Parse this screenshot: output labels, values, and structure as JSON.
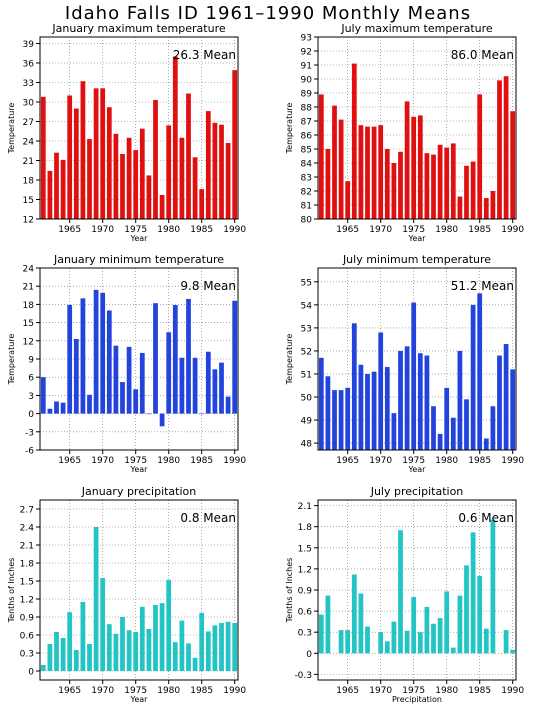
{
  "page_title": "Idaho Falls ID  1961–1990 Monthly Means",
  "chart_data": [
    {
      "type": "bar",
      "title": "January maximum temperature",
      "xlabel": "Year",
      "ylabel": "Temperature",
      "mean_label": "26.3 Mean",
      "color": "#e01010",
      "ylim": [
        12,
        40
      ],
      "yticks": [
        12,
        15,
        18,
        21,
        24,
        27,
        30,
        33,
        36,
        39
      ],
      "ytick_labels": [
        "12",
        "15",
        "18",
        "21",
        "24",
        "27",
        "30",
        "33",
        "36",
        "39"
      ],
      "xlim": [
        1960.5,
        1990.5
      ],
      "xticks": [
        1965,
        1970,
        1975,
        1980,
        1985,
        1990
      ],
      "xtick_labels": [
        "1965",
        "1970",
        "1975",
        "1980",
        "1985",
        "1990"
      ],
      "grid": true,
      "x": [
        1961,
        1962,
        1963,
        1964,
        1965,
        1966,
        1967,
        1968,
        1969,
        1970,
        1971,
        1972,
        1973,
        1974,
        1975,
        1976,
        1977,
        1978,
        1979,
        1980,
        1981,
        1982,
        1983,
        1984,
        1985,
        1986,
        1987,
        1988,
        1989,
        1990
      ],
      "values": [
        30.8,
        19.4,
        22.2,
        21.1,
        31.0,
        29.0,
        33.2,
        24.3,
        32.1,
        32.1,
        29.2,
        25.1,
        22.0,
        24.5,
        22.6,
        25.9,
        18.7,
        30.3,
        15.7,
        26.4,
        37.0,
        24.5,
        31.3,
        21.5,
        16.6,
        28.6,
        26.8,
        26.5,
        23.7,
        34.9
      ]
    },
    {
      "type": "bar",
      "title": "July maximum temperature",
      "xlabel": "Year",
      "ylabel": "Temperature",
      "mean_label": "86.0 Mean",
      "color": "#e01010",
      "ylim": [
        80,
        93
      ],
      "yticks": [
        80,
        81,
        82,
        83,
        84,
        85,
        86,
        87,
        88,
        89,
        90,
        91,
        92,
        93
      ],
      "ytick_labels": [
        "80",
        "81",
        "82",
        "83",
        "84",
        "85",
        "86",
        "87",
        "88",
        "89",
        "90",
        "91",
        "92",
        "93"
      ],
      "xlim": [
        1960.5,
        1990.5
      ],
      "xticks": [
        1965,
        1970,
        1975,
        1980,
        1985,
        1990
      ],
      "xtick_labels": [
        "1965",
        "1970",
        "1975",
        "1980",
        "1985",
        "1990"
      ],
      "grid": true,
      "x": [
        1961,
        1962,
        1963,
        1964,
        1965,
        1966,
        1967,
        1968,
        1969,
        1970,
        1971,
        1972,
        1973,
        1974,
        1975,
        1976,
        1977,
        1978,
        1979,
        1980,
        1981,
        1982,
        1983,
        1984,
        1985,
        1986,
        1987,
        1988,
        1989,
        1990
      ],
      "values": [
        88.9,
        85.0,
        88.1,
        87.1,
        82.7,
        91.1,
        86.7,
        86.6,
        86.6,
        86.7,
        85.0,
        84.0,
        84.8,
        88.4,
        87.3,
        87.4,
        84.7,
        84.6,
        85.3,
        85.1,
        85.4,
        81.6,
        83.8,
        84.1,
        88.9,
        81.5,
        82.0,
        89.9,
        90.2,
        87.7
      ]
    },
    {
      "type": "bar",
      "title": "January minimum temperature",
      "xlabel": "Year",
      "ylabel": "Temperature",
      "mean_label": "9.8 Mean",
      "color": "#2244dd",
      "ylim": [
        -6,
        24
      ],
      "yticks": [
        -6,
        -3,
        0,
        3,
        6,
        9,
        12,
        15,
        18,
        21,
        24
      ],
      "ytick_labels": [
        "-6",
        "-3",
        "0",
        "3",
        "6",
        "9",
        "12",
        "15",
        "18",
        "21",
        "24"
      ],
      "xlim": [
        1960.5,
        1990.5
      ],
      "xticks": [
        1965,
        1970,
        1975,
        1980,
        1985,
        1990
      ],
      "xtick_labels": [
        "1965",
        "1970",
        "1975",
        "1980",
        "1985",
        "1990"
      ],
      "grid": true,
      "x": [
        1961,
        1962,
        1963,
        1964,
        1965,
        1966,
        1967,
        1968,
        1969,
        1970,
        1971,
        1972,
        1973,
        1974,
        1975,
        1976,
        1977,
        1978,
        1979,
        1980,
        1981,
        1982,
        1983,
        1984,
        1985,
        1986,
        1987,
        1988,
        1989,
        1990
      ],
      "values": [
        6.0,
        0.8,
        2.0,
        1.8,
        17.9,
        12.3,
        19.0,
        3.1,
        20.4,
        19.9,
        17.0,
        11.2,
        5.2,
        11.0,
        4.0,
        10.0,
        -0.1,
        18.2,
        -2.1,
        13.4,
        17.9,
        9.2,
        18.9,
        9.2,
        -0.1,
        10.2,
        7.3,
        8.4,
        2.8,
        18.6
      ]
    },
    {
      "type": "bar",
      "title": "July minimum temperature",
      "xlabel": "Year",
      "ylabel": "Temperature",
      "mean_label": "51.2 Mean",
      "color": "#2244dd",
      "ylim": [
        47.7,
        55.6
      ],
      "yticks": [
        48,
        49,
        50,
        51,
        52,
        53,
        54,
        55
      ],
      "ytick_labels": [
        "48",
        "49",
        "50",
        "51",
        "52",
        "53",
        "54",
        "55"
      ],
      "xlim": [
        1960.5,
        1990.5
      ],
      "xticks": [
        1965,
        1970,
        1975,
        1980,
        1985,
        1990
      ],
      "xtick_labels": [
        "1965",
        "1970",
        "1975",
        "1980",
        "1985",
        "1990"
      ],
      "grid": true,
      "x": [
        1961,
        1962,
        1963,
        1964,
        1965,
        1966,
        1967,
        1968,
        1969,
        1970,
        1971,
        1972,
        1973,
        1974,
        1975,
        1976,
        1977,
        1978,
        1979,
        1980,
        1981,
        1982,
        1983,
        1984,
        1985,
        1986,
        1987,
        1988,
        1989,
        1990
      ],
      "values": [
        51.7,
        50.9,
        50.3,
        50.3,
        50.4,
        53.2,
        51.4,
        51.0,
        51.1,
        52.8,
        51.3,
        49.3,
        52.0,
        52.2,
        54.1,
        51.9,
        51.8,
        49.6,
        48.4,
        50.4,
        49.1,
        52.0,
        49.9,
        54.0,
        54.5,
        48.2,
        49.6,
        51.8,
        52.3,
        51.2
      ]
    },
    {
      "type": "bar",
      "title": "January precipitation",
      "xlabel": "Year",
      "ylabel": "Tenths of Inches",
      "mean_label": "0.8 Mean",
      "color": "#22c4c4",
      "ylim": [
        -0.15,
        2.85
      ],
      "yticks": [
        0,
        0.3,
        0.6,
        0.9,
        1.2,
        1.5,
        1.8,
        2.1,
        2.4,
        2.7
      ],
      "ytick_labels": [
        "0",
        "0.3",
        "0.6",
        "0.9",
        "1.2",
        "1.5",
        "1.8",
        "2.1",
        "2.4",
        "2.7"
      ],
      "xlim": [
        1960.5,
        1990.5
      ],
      "xticks": [
        1965,
        1970,
        1975,
        1980,
        1985,
        1990
      ],
      "xtick_labels": [
        "1965",
        "1970",
        "1975",
        "1980",
        "1985",
        "1990"
      ],
      "grid": true,
      "x": [
        1961,
        1962,
        1963,
        1964,
        1965,
        1966,
        1967,
        1968,
        1969,
        1970,
        1971,
        1972,
        1973,
        1974,
        1975,
        1976,
        1977,
        1978,
        1979,
        1980,
        1981,
        1982,
        1983,
        1984,
        1985,
        1986,
        1987,
        1988,
        1989,
        1990
      ],
      "values": [
        0.1,
        0.45,
        0.65,
        0.55,
        0.98,
        0.35,
        1.15,
        0.45,
        2.4,
        1.55,
        0.78,
        0.62,
        0.9,
        0.68,
        0.65,
        1.07,
        0.7,
        1.1,
        1.13,
        1.52,
        0.48,
        0.84,
        0.46,
        0.22,
        0.97,
        0.66,
        0.76,
        0.8,
        0.82,
        0.8
      ]
    },
    {
      "type": "bar",
      "title": "July precipitation",
      "xlabel": "Precipitation",
      "ylabel": "Tenths of Inches",
      "mean_label": "0.6 Mean",
      "color": "#22c4c4",
      "ylim": [
        -0.38,
        2.18
      ],
      "yticks": [
        -0.3,
        0,
        0.3,
        0.6,
        0.9,
        1.2,
        1.5,
        1.8,
        2.1
      ],
      "ytick_labels": [
        "-0.3",
        "0",
        "0.3",
        "0.6",
        "0.9",
        "1.2",
        "1.5",
        "1.8",
        "2.1"
      ],
      "xlim": [
        1960.5,
        1990.5
      ],
      "xticks": [
        1965,
        1970,
        1975,
        1980,
        1985,
        1990
      ],
      "xtick_labels": [
        "1965",
        "1970",
        "1975",
        "1980",
        "1985",
        "1990"
      ],
      "grid": true,
      "x": [
        1961,
        1962,
        1963,
        1964,
        1965,
        1966,
        1967,
        1968,
        1969,
        1970,
        1971,
        1972,
        1973,
        1974,
        1975,
        1976,
        1977,
        1978,
        1979,
        1980,
        1981,
        1982,
        1983,
        1984,
        1985,
        1986,
        1987,
        1988,
        1989,
        1990
      ],
      "values": [
        0.55,
        0.82,
        0.0,
        0.33,
        0.33,
        1.12,
        0.85,
        0.38,
        0.0,
        0.3,
        0.17,
        0.45,
        1.75,
        0.32,
        0.8,
        0.3,
        0.66,
        0.42,
        0.5,
        0.88,
        0.08,
        0.82,
        1.25,
        1.72,
        1.1,
        0.35,
        1.9,
        0.0,
        0.33,
        0.05
      ]
    }
  ]
}
